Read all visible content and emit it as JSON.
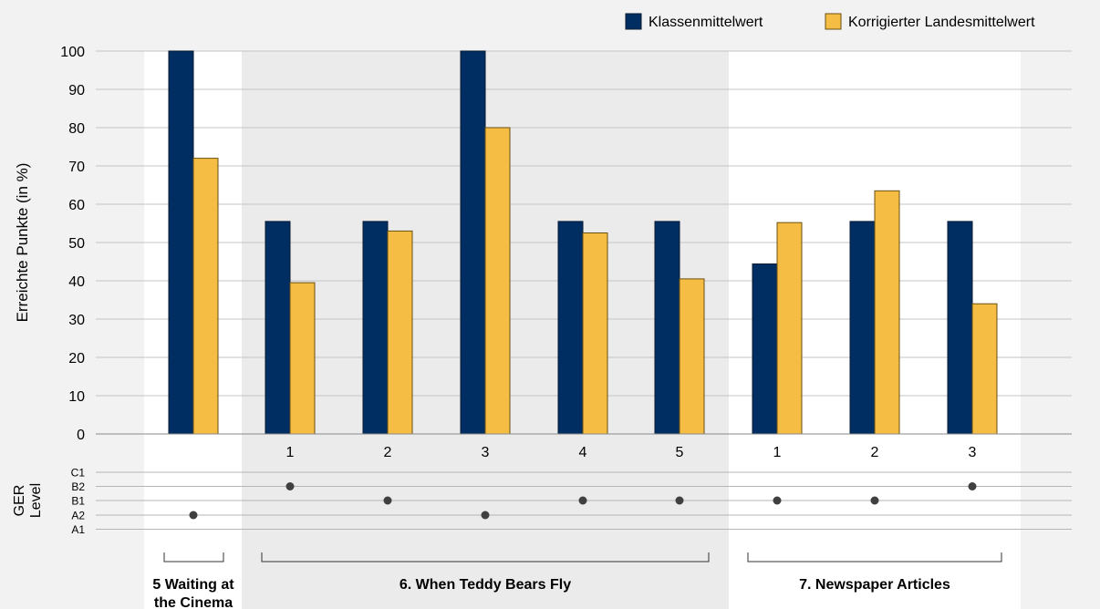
{
  "chart_data": {
    "type": "bar",
    "ylabel": "Erreichte Punkte (in %)",
    "ylim": [
      0,
      100
    ],
    "yticks": [
      0,
      10,
      20,
      30,
      40,
      50,
      60,
      70,
      80,
      90,
      100
    ],
    "grid": true,
    "legend_position": "top-right",
    "categories": [
      "",
      "1",
      "2",
      "3",
      "4",
      "5",
      "1",
      "2",
      "3"
    ],
    "series": [
      {
        "name": "Klassenmittelwert",
        "color": "#002d62",
        "values": [
          100,
          55.5,
          55.5,
          100,
          55.5,
          55.5,
          44.4,
          55.5,
          55.5
        ]
      },
      {
        "name": "Korrigierter Landesmittelwert",
        "color": "#f5bd43",
        "values": [
          72,
          39.5,
          53,
          80,
          52.5,
          40.5,
          55.2,
          63.5,
          34
        ]
      }
    ],
    "ger": {
      "label": "GER Level",
      "levels": [
        "C1",
        "B2",
        "B1",
        "A2",
        "A1"
      ],
      "values": [
        "A2",
        "B2",
        "B1",
        "A2",
        "B1",
        "B1",
        "B1",
        "B1",
        "B2"
      ]
    },
    "groups": [
      {
        "label": "5 Waiting at the Cinema",
        "items": [
          0,
          0
        ]
      },
      {
        "label": "6. When Teddy Bears Fly",
        "items": [
          1,
          5
        ]
      },
      {
        "label": "7. Newspaper Articles",
        "items": [
          6,
          8
        ]
      }
    ]
  }
}
